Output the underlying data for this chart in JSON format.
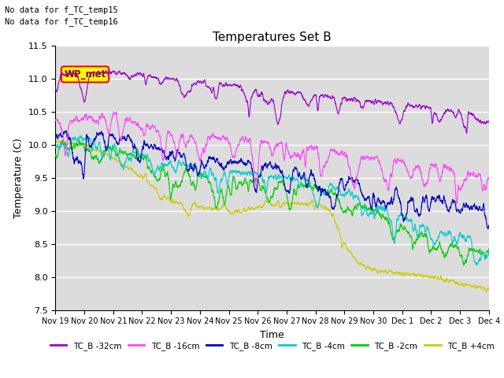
{
  "title": "Temperatures Set B",
  "xlabel": "Time",
  "ylabel": "Temperature (C)",
  "ylim": [
    7.5,
    11.5
  ],
  "annotation1": "No data for f_TC_temp15",
  "annotation2": "No data for f_TC_temp16",
  "wp_met_label": "WP_met",
  "legend_entries": [
    {
      "label": "TC_B -32cm",
      "color": "#9900cc"
    },
    {
      "label": "TC_B -16cm",
      "color": "#ff44ff"
    },
    {
      "label": "TC_B -8cm",
      "color": "#0000bb"
    },
    {
      "label": "TC_B -4cm",
      "color": "#00cccc"
    },
    {
      "label": "TC_B -2cm",
      "color": "#00cc00"
    },
    {
      "label": "TC_B +4cm",
      "color": "#cccc00"
    }
  ],
  "xtick_labels": [
    "Nov 19",
    "Nov 20",
    "Nov 21",
    "Nov 22",
    "Nov 23",
    "Nov 24",
    "Nov 25",
    "Nov 26",
    "Nov 27",
    "Nov 28",
    "Nov 29",
    "Nov 30",
    "Dec 1",
    "Dec 2",
    "Dec 3",
    "Dec 4"
  ],
  "ytick_labels": [
    "7.5",
    "8.0",
    "8.5",
    "9.0",
    "9.5",
    "10.0",
    "10.5",
    "11.0",
    "11.5"
  ],
  "ytick_values": [
    7.5,
    8.0,
    8.5,
    9.0,
    9.5,
    10.0,
    10.5,
    11.0,
    11.5
  ],
  "n_points": 3000,
  "seed": 7
}
